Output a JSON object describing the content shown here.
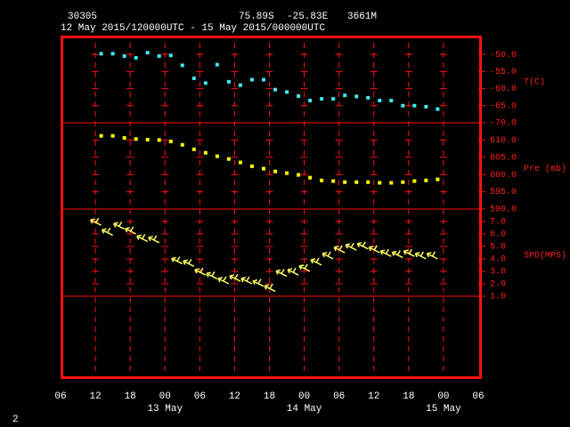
{
  "header": {
    "station": "30305",
    "lat": "75.89S",
    "lon": "-25.83E",
    "elev": "3661M",
    "period": "12 May 2015/120000UTC - 15 May 2015/000000UTC"
  },
  "footer": "2",
  "chart_data": [
    {
      "type": "scatter",
      "ylabel": "T(C)",
      "color": "#40e8f0",
      "x": [
        7,
        9,
        11,
        13,
        15,
        17,
        19,
        21,
        23,
        25,
        27,
        29,
        31,
        33,
        35,
        37,
        39,
        41,
        43,
        45,
        47,
        49,
        51,
        53,
        55,
        57,
        59,
        61,
        63,
        65
      ],
      "values": [
        -49.8,
        -49.8,
        -50.5,
        -51,
        -49.5,
        -50.5,
        -50.3,
        -53.2,
        -57,
        -58.4,
        -53,
        -58,
        -59,
        -57.4,
        -57.4,
        -60.3,
        -61,
        -62.2,
        -63.5,
        -63,
        -63,
        -62,
        -62.3,
        -62.7,
        -63.5,
        -63.5,
        -65,
        -65,
        -65.3,
        -66
      ],
      "ylim": [
        -70,
        -44.5
      ],
      "yticks": [
        {
          "value": -50,
          "label": "-50.0"
        },
        {
          "value": -55,
          "label": "-55.0"
        },
        {
          "value": -60,
          "label": "-60.0"
        },
        {
          "value": -65,
          "label": "-65.0"
        },
        {
          "value": -70,
          "label": "-70.0"
        }
      ]
    },
    {
      "type": "scatter",
      "ylabel": "Pre (mb)",
      "color": "#ffff00",
      "x": [
        7,
        9,
        11,
        13,
        15,
        17,
        19,
        21,
        23,
        25,
        27,
        29,
        31,
        33,
        35,
        37,
        39,
        41,
        43,
        45,
        47,
        49,
        51,
        53,
        55,
        57,
        59,
        61,
        63,
        65
      ],
      "values": [
        611.2,
        611.2,
        610.6,
        610.3,
        610.1,
        610,
        609.6,
        608.6,
        607.3,
        606.3,
        605.3,
        604.5,
        603.5,
        602.4,
        601.7,
        600.9,
        600.4,
        599.9,
        599.1,
        598.3,
        598.1,
        597.8,
        597.8,
        597.8,
        597.6,
        597.6,
        597.8,
        598.1,
        598.3,
        598.6
      ],
      "ylim": [
        590,
        615
      ],
      "yticks": [
        {
          "value": 610,
          "label": "610.0"
        },
        {
          "value": 605,
          "label": "605.0"
        },
        {
          "value": 600,
          "label": "600.0"
        },
        {
          "value": 595,
          "label": "595.0"
        },
        {
          "value": 590,
          "label": "590.0"
        }
      ]
    },
    {
      "type": "barb",
      "ylabel": "SPD(MPS)",
      "color": "#ffff60",
      "x": [
        7,
        9,
        11,
        13,
        15,
        17,
        19,
        21,
        23,
        25,
        27,
        29,
        31,
        33,
        35,
        37,
        39,
        41,
        43,
        45,
        47,
        49,
        51,
        53,
        55,
        57,
        59,
        61,
        63,
        65
      ],
      "values": [
        6.7,
        5.9,
        6.4,
        6.0,
        5.4,
        5.3,
        null,
        3.6,
        3.4,
        2.7,
        2.4,
        2.0,
        2.2,
        2.0,
        1.8,
        1.4,
        2.6,
        2.7,
        3.0,
        3.5,
        4.0,
        4.5,
        4.7,
        4.8,
        4.5,
        4.2,
        4.1,
        4.2,
        4.0,
        4.0
      ],
      "ylim": [
        1,
        8
      ],
      "yticks": [
        {
          "value": 7,
          "label": "7.0"
        },
        {
          "value": 6,
          "label": "6.0"
        },
        {
          "value": 5,
          "label": "5.0"
        },
        {
          "value": 4,
          "label": "4.0"
        },
        {
          "value": 3,
          "label": "3.0"
        },
        {
          "value": 2,
          "label": "2.0"
        },
        {
          "value": 1,
          "label": "1.0"
        }
      ],
      "xlim": [
        0,
        72
      ],
      "xticks": [
        {
          "value": 0,
          "label": "06"
        },
        {
          "value": 6,
          "label": "12"
        },
        {
          "value": 12,
          "label": "18"
        },
        {
          "value": 18,
          "label": "00"
        },
        {
          "value": 24,
          "label": "06"
        },
        {
          "value": 30,
          "label": "12"
        },
        {
          "value": 36,
          "label": "18"
        },
        {
          "value": 42,
          "label": "00"
        },
        {
          "value": 48,
          "label": "06"
        },
        {
          "value": 54,
          "label": "12"
        },
        {
          "value": 60,
          "label": "18"
        },
        {
          "value": 66,
          "label": "00"
        },
        {
          "value": 72,
          "label": "06"
        }
      ],
      "date_labels": [
        {
          "value": 18,
          "label": "13 May"
        },
        {
          "value": 42,
          "label": "14 May"
        },
        {
          "value": 66,
          "label": "15 May"
        }
      ]
    }
  ]
}
